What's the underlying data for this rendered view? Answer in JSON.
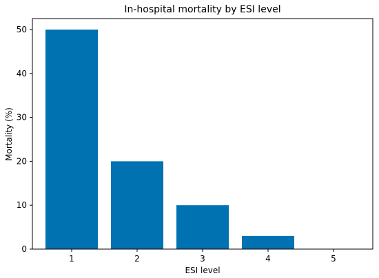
{
  "chart_data": {
    "type": "bar",
    "title": "In-hospital mortality by ESI level",
    "xlabel": "ESI level",
    "ylabel": "Mortality (%)",
    "categories": [
      "1",
      "2",
      "3",
      "4",
      "5"
    ],
    "values": [
      50,
      20,
      10,
      3,
      0
    ],
    "ylim": [
      0,
      52.5
    ],
    "yticks": [
      0,
      10,
      20,
      30,
      40,
      50
    ],
    "bar_color": "#0072b2",
    "grid": false,
    "legend": "none"
  }
}
